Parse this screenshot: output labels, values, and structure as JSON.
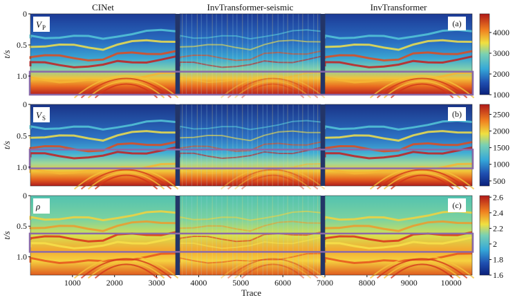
{
  "chart_data": {
    "type": "heatmap",
    "column_titles": [
      "CINet",
      "InvTransformer-seismic",
      "InvTransformer"
    ],
    "xlabel": "Trace",
    "ylabel": "t/s",
    "x_ticks": [
      1000,
      2000,
      3000,
      4000,
      5000,
      6000,
      7000,
      8000,
      9000,
      10000
    ],
    "xlim": [
      0,
      10500
    ],
    "y_ticks": [
      0,
      0.5,
      1.0
    ],
    "ylim": [
      0,
      1.3
    ],
    "colormap": "jet",
    "rows": [
      {
        "variable": "V",
        "subscript": "P",
        "panel_label": "(a)",
        "colorbar_ticks": [
          1000,
          2000,
          3000,
          4000
        ],
        "colorbar_range": [
          1000,
          4900
        ],
        "box_t": [
          0.93,
          1.3
        ]
      },
      {
        "variable": "V",
        "subscript": "S",
        "panel_label": "(b)",
        "colorbar_ticks": [
          500,
          1000,
          1500,
          2000,
          2500
        ],
        "colorbar_range": [
          350,
          2800
        ],
        "box_t": [
          0.72,
          1.02
        ]
      },
      {
        "variable": "ρ",
        "subscript": "",
        "panel_label": "(c)",
        "colorbar_ticks": [
          1.6,
          1.8,
          2.0,
          2.2,
          2.4,
          2.6
        ],
        "colorbar_range": [
          1.6,
          2.62
        ],
        "box_t": [
          0.62,
          0.92
        ]
      }
    ]
  }
}
